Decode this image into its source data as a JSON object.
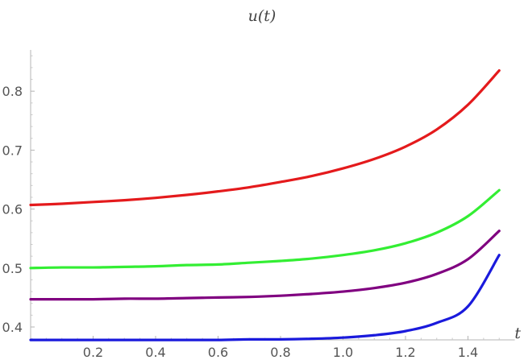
{
  "chart_data": {
    "type": "line",
    "title": "u(t)",
    "xlabel": "t",
    "ylabel": "",
    "xlim": [
      0,
      1.55
    ],
    "ylim": [
      0.37,
      0.87
    ],
    "x_ticks": [
      0.2,
      0.4,
      0.6,
      0.8,
      1.0,
      1.2,
      1.4
    ],
    "x_tick_labels": [
      "0.2",
      "0.4",
      "0.6",
      "0.8",
      "1.0",
      "1.2",
      "1.4"
    ],
    "y_ticks": [
      0.4,
      0.5,
      0.6,
      0.7,
      0.8
    ],
    "y_tick_labels": [
      "0.4",
      "0.5",
      "0.6",
      "0.7",
      "0.8"
    ],
    "grid": false,
    "legend": "none",
    "x": [
      0,
      0.1,
      0.2,
      0.3,
      0.4,
      0.5,
      0.6,
      0.7,
      0.8,
      0.9,
      1.0,
      1.1,
      1.2,
      1.3,
      1.4,
      1.5
    ],
    "series": [
      {
        "color": "#e41a1c",
        "values": [
          0.607,
          0.609,
          0.612,
          0.615,
          0.619,
          0.624,
          0.63,
          0.637,
          0.646,
          0.656,
          0.669,
          0.685,
          0.706,
          0.735,
          0.777,
          0.835
        ]
      },
      {
        "color": "#33ee33",
        "values": [
          0.5,
          0.501,
          0.501,
          0.502,
          0.503,
          0.505,
          0.506,
          0.509,
          0.512,
          0.516,
          0.522,
          0.53,
          0.542,
          0.56,
          0.588,
          0.632
        ]
      },
      {
        "color": "#800080",
        "values": [
          0.447,
          0.447,
          0.447,
          0.448,
          0.448,
          0.449,
          0.45,
          0.451,
          0.453,
          0.456,
          0.46,
          0.466,
          0.475,
          0.49,
          0.515,
          0.563
        ]
      },
      {
        "color": "#1a1adc",
        "values": [
          0.378,
          0.378,
          0.378,
          0.378,
          0.378,
          0.378,
          0.378,
          0.379,
          0.379,
          0.38,
          0.382,
          0.386,
          0.393,
          0.407,
          0.435,
          0.522
        ]
      }
    ]
  }
}
